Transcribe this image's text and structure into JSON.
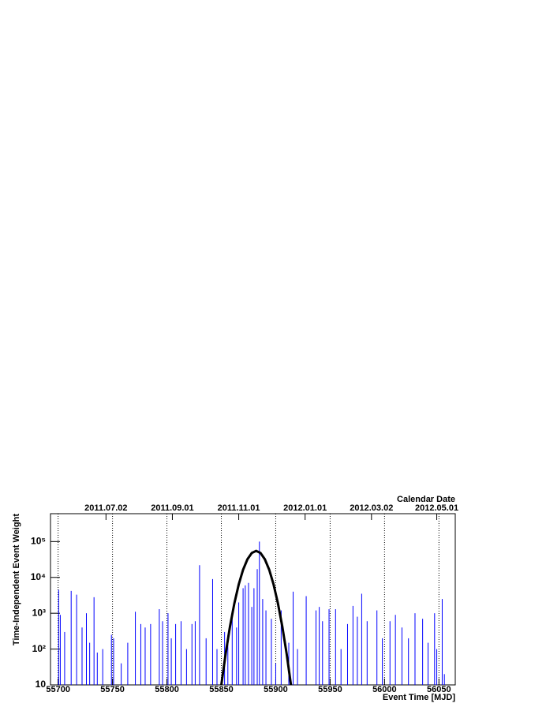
{
  "chart_data": {
    "type": "spike",
    "x_label": "Event Time [MJD]",
    "y_label": "Time-Independent Event Weight",
    "x2_label": "Calendar Date",
    "log_y": true,
    "grid": true,
    "xlim": [
      55693,
      56065
    ],
    "ylim": [
      10,
      600000
    ],
    "xticks": [
      55700,
      55750,
      55800,
      55850,
      55900,
      55950,
      56000,
      56050
    ],
    "yticks": [
      10,
      {
        "value": 100,
        "label": "10²"
      },
      {
        "value": 1000,
        "label": "10³"
      },
      {
        "value": 10000,
        "label": "10⁴"
      },
      {
        "value": 100000,
        "label": "10⁵"
      }
    ],
    "x2ticks": [
      {
        "value": 55744,
        "label": "2011.07.02"
      },
      {
        "value": 55805,
        "label": "2011.09.01"
      },
      {
        "value": 55866,
        "label": "2011.11.01"
      },
      {
        "value": 55927,
        "label": "2012.01.01"
      },
      {
        "value": 55988,
        "label": "2012.03.02"
      },
      {
        "value": 56048,
        "label": "2012.05.01"
      }
    ],
    "series": [
      {
        "type": "spike",
        "color": "#0000ff",
        "x": [
          55700.5,
          55702,
          55706,
          55712,
          55717,
          55722,
          55726,
          55729,
          55733,
          55736,
          55741,
          55749,
          55751,
          55758,
          55764,
          55771,
          55776,
          55780,
          55785,
          55793,
          55796,
          55801,
          55804,
          55808,
          55813,
          55818,
          55823,
          55826,
          55830,
          55836,
          55842,
          55846,
          55853,
          55856,
          55860,
          55864,
          55866,
          55870,
          55872,
          55875,
          55878,
          55880,
          55883,
          55885,
          55888,
          55891,
          55896,
          55900,
          55905,
          55912,
          55916,
          55920,
          55928,
          55937,
          55940,
          55943,
          55949,
          55955,
          55960,
          55966,
          55971,
          55975,
          55979,
          55984,
          55993,
          55998,
          56005,
          56010,
          56016,
          56022,
          56028,
          56035,
          56040,
          56046,
          56048,
          56053,
          56055
        ],
        "values": [
          4500,
          900,
          300,
          4200,
          3300,
          400,
          1000,
          150,
          2800,
          80,
          100,
          250,
          200,
          40,
          150,
          1100,
          500,
          400,
          500,
          1300,
          600,
          1000,
          200,
          500,
          600,
          100,
          500,
          600,
          22000,
          200,
          9000,
          100,
          300,
          250,
          900,
          400,
          2000,
          5000,
          6000,
          7000,
          1500,
          5000,
          17000,
          100000,
          2500,
          1200,
          700,
          40,
          1200,
          150,
          4000,
          100,
          3000,
          1200,
          1500,
          600,
          1300,
          1300,
          100,
          500,
          1600,
          800,
          3500,
          600,
          1200,
          200,
          600,
          900,
          400,
          200,
          1000,
          700,
          150,
          1000,
          100,
          2500,
          20
        ]
      },
      {
        "type": "line",
        "color": "#000000",
        "x": [
          55850,
          55854,
          55858,
          55862,
          55866,
          55870,
          55874,
          55878,
          55882,
          55886,
          55890,
          55894,
          55898,
          55902,
          55906,
          55910,
          55914
        ],
        "values": [
          10,
          75,
          433,
          1900,
          6380,
          16400,
          32100,
          48100,
          55000,
          48100,
          32100,
          16400,
          6380,
          1900,
          433,
          75,
          10
        ]
      }
    ]
  }
}
